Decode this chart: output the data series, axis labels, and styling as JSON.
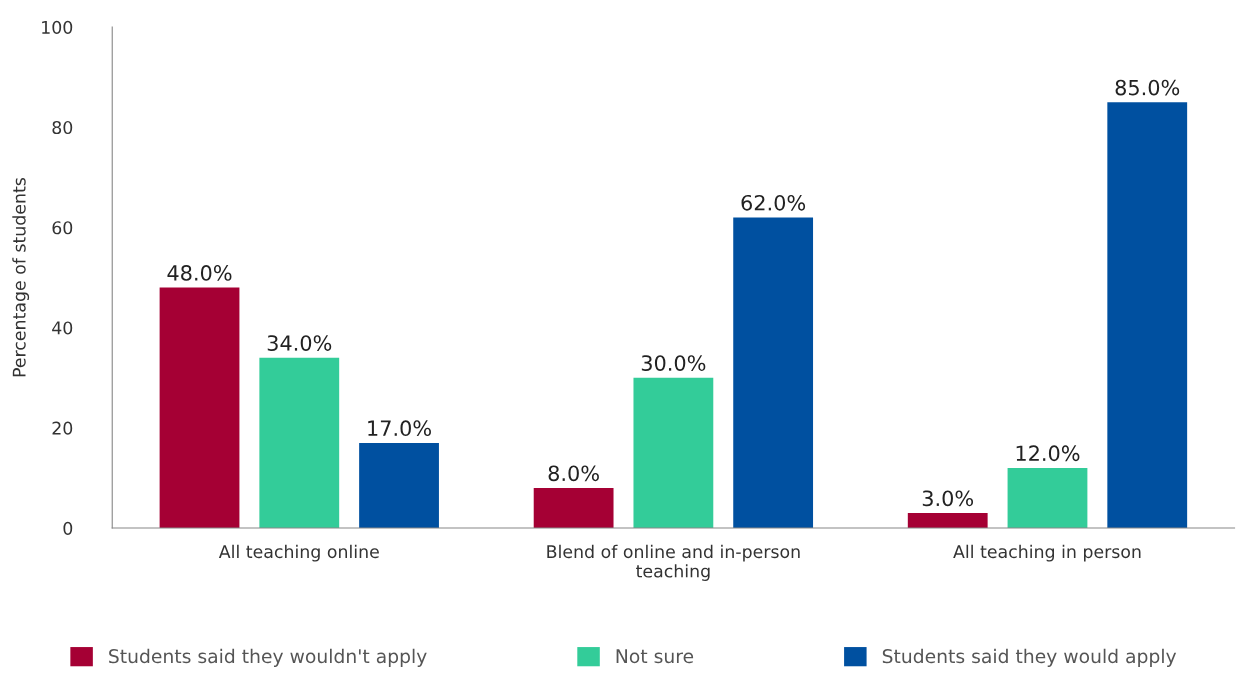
{
  "chart_data": {
    "type": "bar",
    "categories": [
      "All teaching online",
      "Blend of online and in-person teaching",
      "All teaching in person"
    ],
    "ylabel": "Percentage of students",
    "ylim": [
      0,
      100
    ],
    "yticks": [
      0,
      20,
      40,
      60,
      80,
      100
    ],
    "grid": false,
    "legend": "bottom",
    "series": [
      {
        "name": "Students said they wouldn't apply",
        "color": "#a50034",
        "values": [
          48,
          8,
          3
        ],
        "value_labels": [
          "48.0%",
          "8.0%",
          "3.0%"
        ]
      },
      {
        "name": "Not sure",
        "color": "#33cc99",
        "values": [
          34,
          30,
          12
        ],
        "value_labels": [
          "34.0%",
          "30.0%",
          "12.0%"
        ]
      },
      {
        "name": "Students said they would apply",
        "color": "#0050a0",
        "values": [
          17,
          62,
          85
        ],
        "value_labels": [
          "17.0%",
          "62.0%",
          "85.0%"
        ]
      }
    ]
  }
}
